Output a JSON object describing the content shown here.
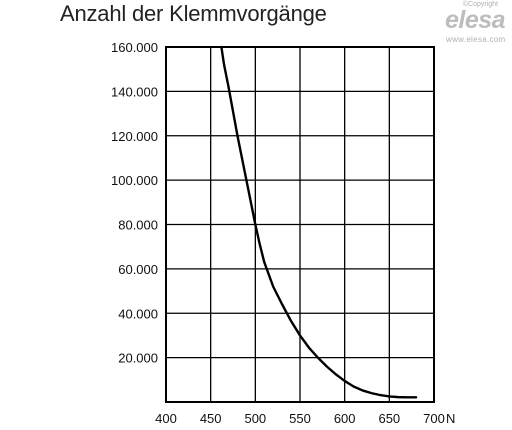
{
  "logo": {
    "copyright": "©Copyright",
    "brand": "elesa",
    "website": "www.elesa.com"
  },
  "chart_data": {
    "type": "line",
    "title": "Anzahl der Klemmvorgänge",
    "x_unit": "N",
    "xlim": [
      400,
      700
    ],
    "ylim": [
      0,
      160000
    ],
    "x_ticks": [
      400,
      450,
      500,
      550,
      600,
      650,
      700
    ],
    "y_ticks": [
      20000,
      40000,
      60000,
      80000,
      100000,
      120000,
      140000,
      160000
    ],
    "x_tick_labels": [
      "400",
      "450",
      "500",
      "550",
      "600",
      "650",
      "700"
    ],
    "y_tick_labels": [
      "20.000",
      "40.000",
      "60.000",
      "80.000",
      "100.000",
      "120.000",
      "140.000",
      "160.000"
    ],
    "grid": true,
    "series": [
      {
        "color": "#000000",
        "x": [
          462,
          465,
          470,
          475,
          480,
          485,
          490,
          495,
          500,
          505,
          510,
          520,
          530,
          540,
          550,
          560,
          570,
          580,
          590,
          600,
          610,
          620,
          630,
          640,
          650,
          660,
          670,
          680
        ],
        "y": [
          160000,
          152000,
          142000,
          131000,
          120000,
          110000,
          100000,
          90000,
          80000,
          71000,
          63000,
          52000,
          44000,
          36500,
          30000,
          24500,
          20000,
          16000,
          12500,
          9500,
          7000,
          5200,
          4000,
          3100,
          2500,
          2200,
          2100,
          2100
        ]
      }
    ]
  }
}
